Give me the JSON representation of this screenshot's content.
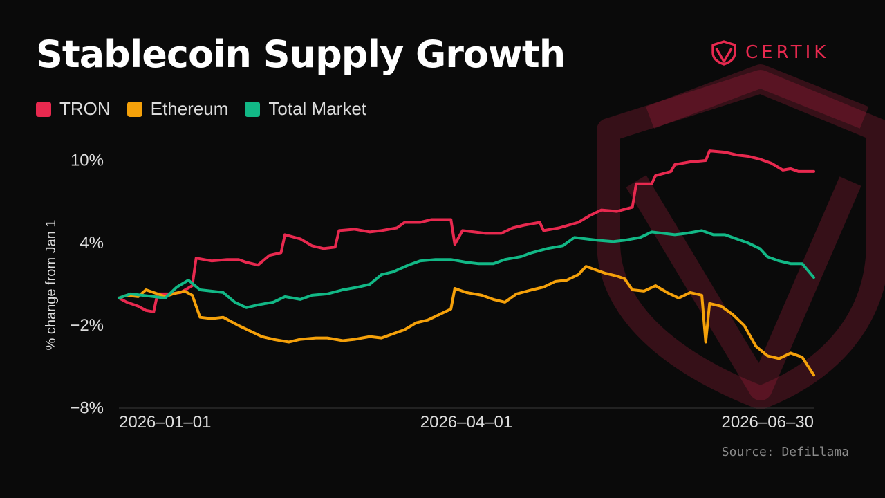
{
  "header": {
    "title": "Stablecoin Supply Growth"
  },
  "brand": {
    "wordmark": "CERTIK",
    "color": "#e8294f",
    "icon": "certik-shield-icon"
  },
  "legend": [
    {
      "label": "TRON",
      "color": "#e8294f"
    },
    {
      "label": "Ethereum",
      "color": "#f5a10a"
    },
    {
      "label": "Total Market",
      "color": "#12b886"
    }
  ],
  "footer": {
    "source": "Source: DefiLlama"
  },
  "chart_data": {
    "type": "line",
    "ylabel": "% change from Jan 1",
    "ylim": [
      -8,
      10
    ],
    "yticks": [
      10,
      4,
      -2,
      -8
    ],
    "ytick_labels": [
      "10%",
      "4%",
      "−2%",
      "−8%"
    ],
    "xlim": [
      "2026-01-01",
      "2026-06-30"
    ],
    "xticks": [
      "2026-01-01",
      "2026-04-01",
      "2026-06-30"
    ],
    "xtick_labels": [
      "2026–01–01",
      "2026–04–01",
      "2026–06–30"
    ],
    "grid": false,
    "legend_position": "top-left",
    "series": [
      {
        "name": "TRON",
        "color": "#e8294f",
        "points": [
          [
            "2026-01-01",
            0.0
          ],
          [
            "2026-01-03",
            -0.3
          ],
          [
            "2026-01-06",
            -0.6
          ],
          [
            "2026-01-08",
            -0.9
          ],
          [
            "2026-01-10",
            -1.0
          ],
          [
            "2026-01-11",
            0.3
          ],
          [
            "2026-01-14",
            0.3
          ],
          [
            "2026-01-17",
            0.4
          ],
          [
            "2026-01-20",
            0.9
          ],
          [
            "2026-01-21",
            2.9
          ],
          [
            "2026-01-25",
            2.7
          ],
          [
            "2026-01-29",
            2.8
          ],
          [
            "2026-02-01",
            2.8
          ],
          [
            "2026-02-03",
            2.6
          ],
          [
            "2026-02-06",
            2.4
          ],
          [
            "2026-02-09",
            3.1
          ],
          [
            "2026-02-12",
            3.3
          ],
          [
            "2026-02-13",
            4.6
          ],
          [
            "2026-02-17",
            4.3
          ],
          [
            "2026-02-20",
            3.8
          ],
          [
            "2026-02-23",
            3.6
          ],
          [
            "2026-02-26",
            3.7
          ],
          [
            "2026-02-27",
            4.9
          ],
          [
            "2026-03-03",
            5.0
          ],
          [
            "2026-03-07",
            4.8
          ],
          [
            "2026-03-10",
            4.9
          ],
          [
            "2026-03-14",
            5.1
          ],
          [
            "2026-03-16",
            5.5
          ],
          [
            "2026-03-20",
            5.5
          ],
          [
            "2026-03-23",
            5.7
          ],
          [
            "2026-03-28",
            5.7
          ],
          [
            "2026-03-29",
            3.9
          ],
          [
            "2026-03-31",
            4.9
          ],
          [
            "2026-04-03",
            4.8
          ],
          [
            "2026-04-06",
            4.7
          ],
          [
            "2026-04-10",
            4.7
          ],
          [
            "2026-04-13",
            5.1
          ],
          [
            "2026-04-16",
            5.3
          ],
          [
            "2026-04-20",
            5.5
          ],
          [
            "2026-04-21",
            4.9
          ],
          [
            "2026-04-25",
            5.1
          ],
          [
            "2026-04-30",
            5.5
          ],
          [
            "2026-05-03",
            6.0
          ],
          [
            "2026-05-06",
            6.4
          ],
          [
            "2026-05-10",
            6.3
          ],
          [
            "2026-05-14",
            6.6
          ],
          [
            "2026-05-15",
            8.3
          ],
          [
            "2026-05-19",
            8.3
          ],
          [
            "2026-05-20",
            8.9
          ],
          [
            "2026-05-24",
            9.2
          ],
          [
            "2026-05-25",
            9.7
          ],
          [
            "2026-05-29",
            9.9
          ],
          [
            "2026-06-02",
            10.0
          ],
          [
            "2026-06-03",
            10.7
          ],
          [
            "2026-06-07",
            10.6
          ],
          [
            "2026-06-10",
            10.4
          ],
          [
            "2026-06-13",
            10.3
          ],
          [
            "2026-06-16",
            10.1
          ],
          [
            "2026-06-19",
            9.8
          ],
          [
            "2026-06-22",
            9.3
          ],
          [
            "2026-06-24",
            9.4
          ],
          [
            "2026-06-26",
            9.2
          ],
          [
            "2026-06-30",
            9.2
          ]
        ]
      },
      {
        "name": "Ethereum",
        "color": "#f5a10a",
        "points": [
          [
            "2026-01-01",
            0.0
          ],
          [
            "2026-01-03",
            0.2
          ],
          [
            "2026-01-06",
            0.1
          ],
          [
            "2026-01-08",
            0.6
          ],
          [
            "2026-01-10",
            0.4
          ],
          [
            "2026-01-13",
            0.1
          ],
          [
            "2026-01-15",
            0.3
          ],
          [
            "2026-01-18",
            0.5
          ],
          [
            "2026-01-20",
            0.2
          ],
          [
            "2026-01-22",
            -1.4
          ],
          [
            "2026-01-25",
            -1.5
          ],
          [
            "2026-01-28",
            -1.4
          ],
          [
            "2026-02-01",
            -2.0
          ],
          [
            "2026-02-04",
            -2.4
          ],
          [
            "2026-02-07",
            -2.8
          ],
          [
            "2026-02-10",
            -3.0
          ],
          [
            "2026-02-14",
            -3.2
          ],
          [
            "2026-02-17",
            -3.0
          ],
          [
            "2026-02-21",
            -2.9
          ],
          [
            "2026-02-24",
            -2.9
          ],
          [
            "2026-02-28",
            -3.1
          ],
          [
            "2026-03-03",
            -3.0
          ],
          [
            "2026-03-07",
            -2.8
          ],
          [
            "2026-03-10",
            -2.9
          ],
          [
            "2026-03-13",
            -2.6
          ],
          [
            "2026-03-16",
            -2.3
          ],
          [
            "2026-03-19",
            -1.8
          ],
          [
            "2026-03-22",
            -1.6
          ],
          [
            "2026-03-25",
            -1.2
          ],
          [
            "2026-03-28",
            -0.8
          ],
          [
            "2026-03-29",
            0.7
          ],
          [
            "2026-04-01",
            0.4
          ],
          [
            "2026-04-05",
            0.2
          ],
          [
            "2026-04-08",
            -0.1
          ],
          [
            "2026-04-11",
            -0.3
          ],
          [
            "2026-04-14",
            0.3
          ],
          [
            "2026-04-18",
            0.6
          ],
          [
            "2026-04-21",
            0.8
          ],
          [
            "2026-04-24",
            1.2
          ],
          [
            "2026-04-27",
            1.3
          ],
          [
            "2026-04-30",
            1.7
          ],
          [
            "2026-05-02",
            2.3
          ],
          [
            "2026-05-05",
            2.0
          ],
          [
            "2026-05-07",
            1.8
          ],
          [
            "2026-05-10",
            1.6
          ],
          [
            "2026-05-12",
            1.4
          ],
          [
            "2026-05-14",
            0.6
          ],
          [
            "2026-05-17",
            0.5
          ],
          [
            "2026-05-20",
            0.9
          ],
          [
            "2026-05-23",
            0.4
          ],
          [
            "2026-05-26",
            0.0
          ],
          [
            "2026-05-29",
            0.4
          ],
          [
            "2026-06-01",
            0.2
          ],
          [
            "2026-06-02",
            -3.2
          ],
          [
            "2026-06-03",
            -0.4
          ],
          [
            "2026-06-06",
            -0.6
          ],
          [
            "2026-06-09",
            -1.2
          ],
          [
            "2026-06-12",
            -2.0
          ],
          [
            "2026-06-15",
            -3.5
          ],
          [
            "2026-06-18",
            -4.2
          ],
          [
            "2026-06-21",
            -4.4
          ],
          [
            "2026-06-24",
            -4.0
          ],
          [
            "2026-06-27",
            -4.3
          ],
          [
            "2026-06-30",
            -5.6
          ]
        ]
      },
      {
        "name": "Total Market",
        "color": "#12b886",
        "points": [
          [
            "2026-01-01",
            0.0
          ],
          [
            "2026-01-04",
            0.3
          ],
          [
            "2026-01-07",
            0.2
          ],
          [
            "2026-01-10",
            0.1
          ],
          [
            "2026-01-13",
            0.0
          ],
          [
            "2026-01-16",
            0.8
          ],
          [
            "2026-01-19",
            1.3
          ],
          [
            "2026-01-22",
            0.6
          ],
          [
            "2026-01-25",
            0.5
          ],
          [
            "2026-01-28",
            0.4
          ],
          [
            "2026-01-31",
            -0.3
          ],
          [
            "2026-02-03",
            -0.7
          ],
          [
            "2026-02-06",
            -0.5
          ],
          [
            "2026-02-10",
            -0.3
          ],
          [
            "2026-02-13",
            0.1
          ],
          [
            "2026-02-17",
            -0.1
          ],
          [
            "2026-02-20",
            0.2
          ],
          [
            "2026-02-24",
            0.3
          ],
          [
            "2026-02-28",
            0.6
          ],
          [
            "2026-03-04",
            0.8
          ],
          [
            "2026-03-07",
            1.0
          ],
          [
            "2026-03-10",
            1.7
          ],
          [
            "2026-03-13",
            1.9
          ],
          [
            "2026-03-17",
            2.4
          ],
          [
            "2026-03-20",
            2.7
          ],
          [
            "2026-03-24",
            2.8
          ],
          [
            "2026-03-28",
            2.8
          ],
          [
            "2026-04-01",
            2.6
          ],
          [
            "2026-04-04",
            2.5
          ],
          [
            "2026-04-08",
            2.5
          ],
          [
            "2026-04-11",
            2.8
          ],
          [
            "2026-04-15",
            3.0
          ],
          [
            "2026-04-18",
            3.3
          ],
          [
            "2026-04-22",
            3.6
          ],
          [
            "2026-04-26",
            3.8
          ],
          [
            "2026-04-29",
            4.4
          ],
          [
            "2026-05-02",
            4.3
          ],
          [
            "2026-05-05",
            4.2
          ],
          [
            "2026-05-09",
            4.1
          ],
          [
            "2026-05-12",
            4.2
          ],
          [
            "2026-05-16",
            4.4
          ],
          [
            "2026-05-19",
            4.8
          ],
          [
            "2026-05-22",
            4.7
          ],
          [
            "2026-05-25",
            4.6
          ],
          [
            "2026-05-28",
            4.7
          ],
          [
            "2026-06-01",
            4.9
          ],
          [
            "2026-06-04",
            4.6
          ],
          [
            "2026-06-07",
            4.6
          ],
          [
            "2026-06-10",
            4.3
          ],
          [
            "2026-06-13",
            4.0
          ],
          [
            "2026-06-16",
            3.6
          ],
          [
            "2026-06-18",
            3.0
          ],
          [
            "2026-06-21",
            2.7
          ],
          [
            "2026-06-24",
            2.5
          ],
          [
            "2026-06-27",
            2.5
          ],
          [
            "2026-06-30",
            1.5
          ]
        ]
      }
    ]
  }
}
